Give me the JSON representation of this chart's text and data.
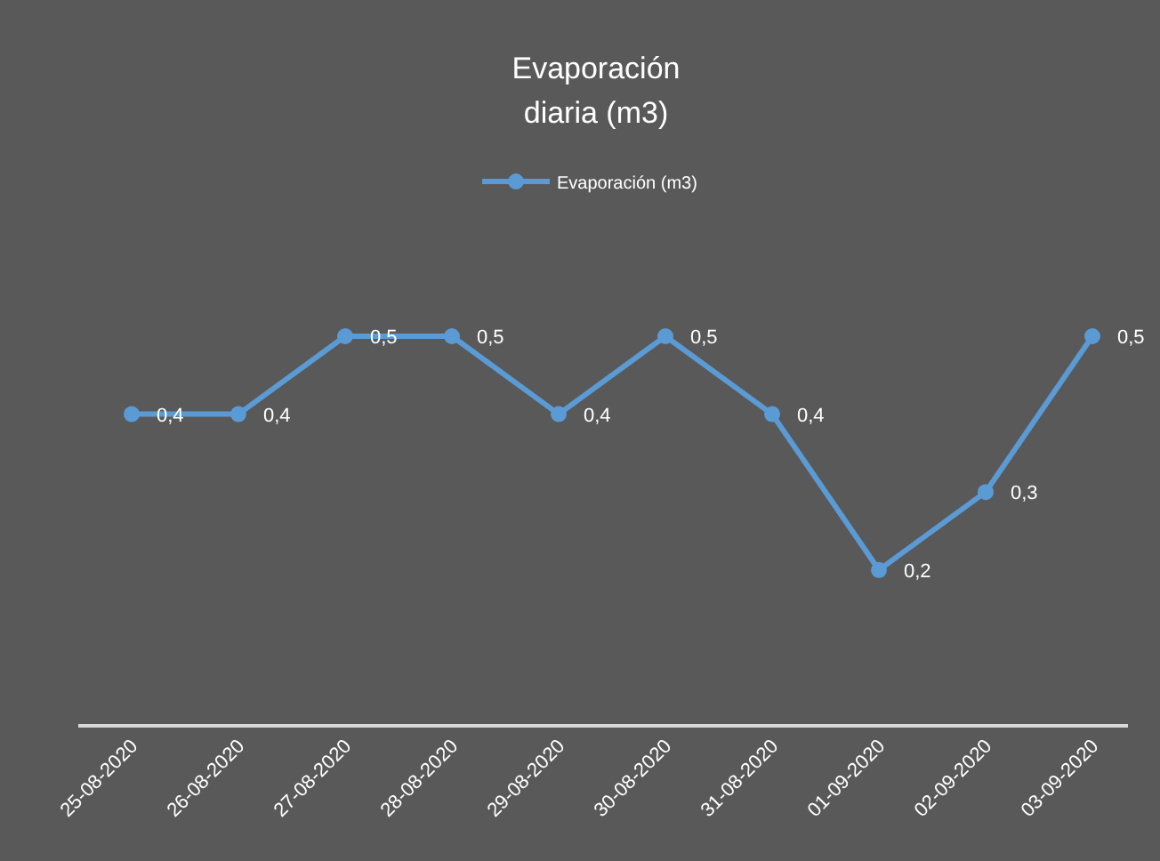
{
  "chart_data": {
    "type": "line",
    "title": "Evaporación\ndiaria (m3)",
    "categories": [
      "25-08-2020",
      "26-08-2020",
      "27-08-2020",
      "28-08-2020",
      "29-08-2020",
      "30-08-2020",
      "31-08-2020",
      "01-09-2020",
      "02-09-2020",
      "03-09-2020"
    ],
    "series": [
      {
        "name": "Evaporación (m3)",
        "color": "#5b9bd5",
        "values": [
          0.4,
          0.4,
          0.5,
          0.5,
          0.4,
          0.5,
          0.4,
          0.2,
          0.3,
          0.5
        ],
        "value_labels": [
          "0,4",
          "0,4",
          "0,5",
          "0,5",
          "0,4",
          "0,5",
          "0,4",
          "0,2",
          "0,3",
          "0,5"
        ]
      }
    ],
    "legend": "top",
    "marker": "circle",
    "line_style": "solid"
  }
}
